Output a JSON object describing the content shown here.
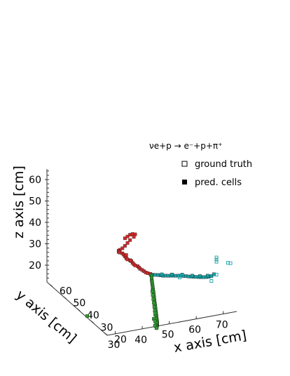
{
  "chart_data": {
    "type": "scatter",
    "title": "νe+p → e⁻+p+π⁺",
    "xlabel": "x axis [cm]",
    "ylabel": "y axis [cm]",
    "zlabel": "z axis [cm]",
    "x_ticks": [
      "30",
      "40",
      "50",
      "60",
      "70"
    ],
    "y_ticks": [
      "20",
      "30",
      "40",
      "50",
      "60"
    ],
    "z_ticks": [
      "20",
      "30",
      "40",
      "50",
      "60"
    ],
    "legend": {
      "placement": "top-right",
      "entries": [
        {
          "label": "ground truth",
          "marker": "open-square"
        },
        {
          "label": "pred. cells",
          "marker": "filled-square"
        }
      ]
    },
    "series": [
      {
        "color": "#d62728",
        "points": [
          [
            35,
            25,
            63.5
          ],
          [
            36,
            25,
            64
          ],
          [
            37,
            25,
            64.5
          ],
          [
            38,
            25,
            64.5
          ],
          [
            39,
            25,
            64
          ],
          [
            38.5,
            25,
            63
          ],
          [
            37,
            25,
            62
          ],
          [
            36,
            25,
            61
          ],
          [
            35,
            25,
            60
          ],
          [
            34,
            25,
            59.2
          ],
          [
            33,
            25,
            58.8
          ],
          [
            32.5,
            25,
            58.5
          ],
          [
            32.5,
            25,
            58
          ],
          [
            33,
            25,
            57.5
          ],
          [
            34,
            25,
            56.8
          ],
          [
            34.5,
            25,
            56
          ],
          [
            35,
            25,
            55
          ],
          [
            35.5,
            25,
            54
          ],
          [
            36,
            25,
            53.3
          ],
          [
            37,
            25,
            52.6
          ],
          [
            37.5,
            25,
            52
          ],
          [
            38,
            25,
            51
          ],
          [
            38.5,
            25,
            50.2
          ],
          [
            39,
            25,
            49.5
          ],
          [
            40,
            25,
            48.8
          ],
          [
            40.5,
            25,
            48
          ],
          [
            41,
            25,
            47.2
          ],
          [
            41.8,
            25,
            46.4
          ],
          [
            42.5,
            25,
            45.6
          ],
          [
            43.2,
            25,
            44.8
          ],
          [
            44,
            25,
            44.2
          ],
          [
            45,
            25,
            43.5
          ],
          [
            35.5,
            25,
            55.5
          ],
          [
            37.2,
            25,
            52.3
          ]
        ]
      },
      {
        "color": "#17a2a8",
        "points": [
          [
            46,
            25,
            42.8
          ],
          [
            47,
            25,
            42.4
          ],
          [
            48,
            25,
            42
          ],
          [
            49,
            25,
            41.5
          ],
          [
            50,
            25,
            41
          ],
          [
            51,
            25,
            40.7
          ],
          [
            52,
            25,
            40.3
          ],
          [
            53,
            25,
            40
          ],
          [
            54,
            25,
            39.7
          ],
          [
            55,
            25,
            39.3
          ],
          [
            56,
            25,
            39
          ],
          [
            57,
            25,
            38.6
          ],
          [
            58,
            25,
            38.2
          ],
          [
            59,
            25,
            37.8
          ],
          [
            60,
            25,
            37.3
          ],
          [
            61,
            25,
            36.9
          ],
          [
            62,
            25,
            36.5
          ],
          [
            63,
            25,
            36.1
          ],
          [
            64,
            25,
            35.7
          ],
          [
            65,
            25,
            35.3
          ],
          [
            66,
            25,
            35
          ],
          [
            67,
            25,
            34.7
          ],
          [
            68,
            25,
            34.5
          ],
          [
            69,
            25,
            34.5
          ],
          [
            70,
            25,
            35
          ],
          [
            49.5,
            25,
            41.8
          ],
          [
            53.5,
            25,
            40.4
          ],
          [
            57.5,
            25,
            39
          ],
          [
            61.5,
            25,
            37.2
          ],
          [
            64.5,
            25,
            36
          ],
          [
            67.5,
            25,
            35.2
          ]
        ]
      },
      {
        "color": "#2ca02c",
        "points": [
          [
            45.5,
            25.5,
            42.5
          ],
          [
            46,
            26,
            41.5
          ],
          [
            46.3,
            26.5,
            40.3
          ],
          [
            46.6,
            27,
            39
          ],
          [
            47,
            27.5,
            38
          ],
          [
            47.3,
            28,
            37
          ],
          [
            47.6,
            28.5,
            36
          ],
          [
            48,
            29,
            35
          ],
          [
            48.3,
            29.5,
            34
          ],
          [
            48.6,
            30,
            33
          ],
          [
            49,
            30.5,
            32
          ],
          [
            49.3,
            31,
            31
          ],
          [
            49.6,
            31.5,
            30.2
          ],
          [
            50,
            32,
            29.3
          ],
          [
            50.3,
            32.5,
            28.3
          ],
          [
            50.6,
            33,
            27.2
          ],
          [
            51,
            33.5,
            26.2
          ],
          [
            51.3,
            34,
            25.2
          ],
          [
            51.6,
            34.5,
            24.2
          ],
          [
            52,
            35,
            23.2
          ],
          [
            52.3,
            35.5,
            22.2
          ],
          [
            52.6,
            36,
            21.2
          ],
          [
            53,
            36.5,
            20.2
          ],
          [
            53.3,
            37,
            19.2
          ],
          [
            53.6,
            37.5,
            18.2
          ],
          [
            54,
            38,
            17.2
          ],
          [
            54.3,
            38.5,
            16.2
          ],
          [
            54.6,
            39,
            15.2
          ],
          [
            55,
            39.5,
            14.2
          ],
          [
            55.3,
            40,
            13.2
          ],
          [
            55.6,
            40.5,
            12.2
          ],
          [
            56,
            41,
            11.2
          ],
          [
            56.3,
            41.5,
            10.2
          ],
          [
            56.6,
            42,
            9.2
          ],
          [
            57,
            42.5,
            8.2
          ],
          [
            57.3,
            43,
            7.2
          ],
          [
            57.6,
            43.5,
            6.2
          ],
          [
            57.9,
            44,
            5.5
          ],
          [
            58.2,
            44.5,
            4.8
          ],
          [
            58.4,
            45,
            4
          ],
          [
            58.6,
            45.5,
            3.2
          ],
          [
            58.8,
            46,
            2.4
          ],
          [
            59,
            46.5,
            1.8
          ],
          [
            59.2,
            47,
            1.2
          ],
          [
            58,
            45,
            4.5
          ],
          [
            57.5,
            44,
            6
          ],
          [
            56.5,
            42.5,
            9
          ],
          [
            55.5,
            41,
            12
          ],
          [
            54.5,
            39.5,
            15
          ],
          [
            53.5,
            38,
            18
          ],
          [
            52.5,
            36.5,
            21
          ],
          [
            51.5,
            35,
            24
          ],
          [
            50.5,
            33.5,
            27
          ],
          [
            49.5,
            32,
            30
          ],
          [
            56,
            43,
            8.8
          ],
          [
            57,
            44,
            6.8
          ],
          [
            55,
            40,
            13.5
          ],
          [
            58.5,
            46,
            2.8
          ],
          [
            57.8,
            45.5,
            3.6
          ],
          [
            59.5,
            47.5,
            0.8
          ],
          [
            25,
            34,
            25.5
          ]
        ]
      }
    ],
    "ground_truth_only": [
      [
        71,
        25,
        40.5
      ],
      [
        71,
        25,
        41.5
      ],
      [
        71,
        25,
        42.5
      ],
      [
        75.5,
        25,
        38.5
      ],
      [
        76.5,
        25,
        38
      ],
      [
        69,
        25,
        32.2
      ],
      [
        71,
        25,
        34.5
      ],
      [
        56.5,
        25,
        38
      ],
      [
        57.5,
        25,
        38.5
      ]
    ]
  }
}
